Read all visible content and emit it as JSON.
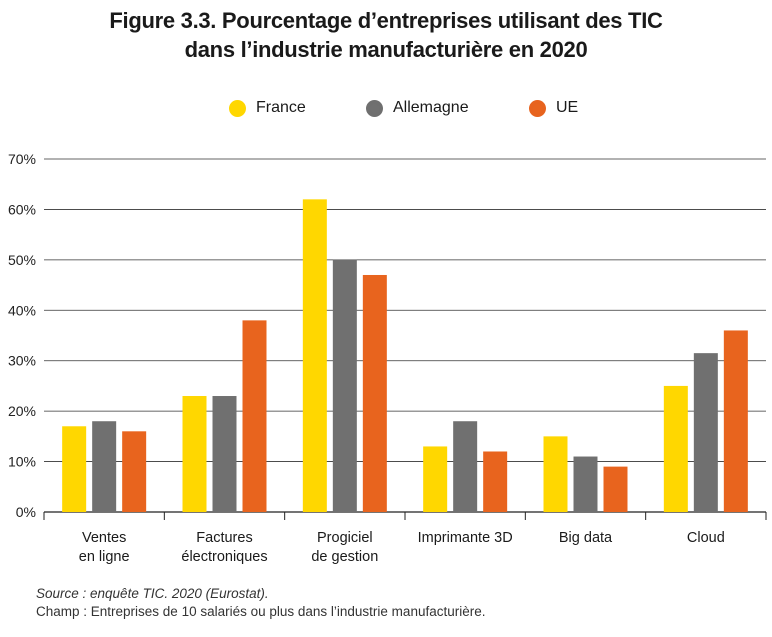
{
  "title_line1": "Figure 3.3. Pourcentage d’entreprises utilisant des TIC",
  "title_line2": "dans l’industrie manufacturière en 2020",
  "footer": {
    "source": "Source : enquête TIC. 2020 (Eurostat).",
    "champ": "Champ : Entreprises de 10 salariés ou plus dans l’industrie manufacturière."
  },
  "chart_data": {
    "type": "bar",
    "categories": [
      [
        "Ventes",
        "en ligne"
      ],
      [
        "Factures",
        "électroniques"
      ],
      [
        "Progiciel",
        "de gestion"
      ],
      [
        "Imprimante 3D"
      ],
      [
        "Big data"
      ],
      [
        "Cloud"
      ]
    ],
    "series": [
      {
        "name": "France",
        "color": "#FFD700",
        "values": [
          17,
          23,
          62,
          13,
          15,
          25
        ]
      },
      {
        "name": "Allemagne",
        "color": "#707070",
        "values": [
          18,
          23,
          50,
          18,
          11,
          31.5
        ]
      },
      {
        "name": "UE",
        "color": "#E8641E",
        "values": [
          16,
          38,
          47,
          12,
          9,
          36
        ]
      }
    ],
    "yticks": [
      "0%",
      "10%",
      "20%",
      "30%",
      "40%",
      "50%",
      "60%",
      "70%"
    ],
    "ylim": [
      0,
      70
    ],
    "grid": true,
    "legend_position": "top-center"
  }
}
